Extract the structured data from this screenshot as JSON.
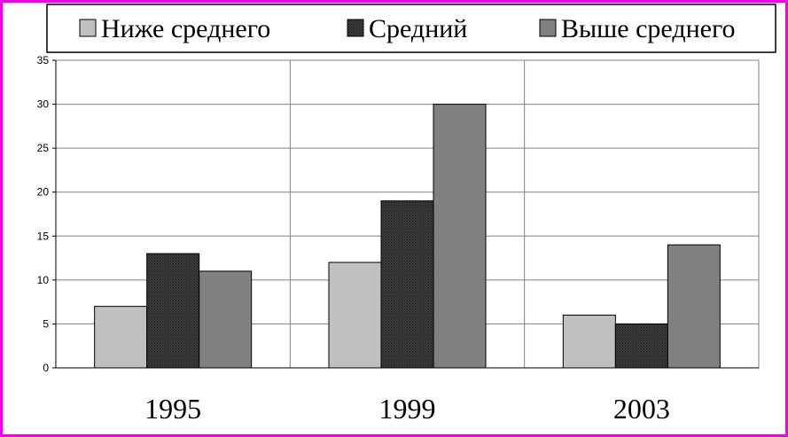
{
  "chart_data": {
    "type": "bar",
    "categories": [
      "1995",
      "1999",
      "2003"
    ],
    "series": [
      {
        "name": "Ниже среднего",
        "values": [
          7,
          12,
          6
        ],
        "color": "#c0c0c0"
      },
      {
        "name": "Средний",
        "values": [
          13,
          19,
          5
        ],
        "color": "#333333",
        "pattern": "dotted"
      },
      {
        "name": "Выше среднего",
        "values": [
          11,
          30,
          14
        ],
        "color": "#808080"
      }
    ],
    "yticks": [
      "0",
      "5",
      "10",
      "15",
      "20",
      "25",
      "30",
      "35"
    ],
    "ylim": [
      0,
      35
    ],
    "grid": true,
    "legend_position": "top"
  },
  "colors": {
    "frame_border": "#ee00ee",
    "gridline": "#808080"
  }
}
